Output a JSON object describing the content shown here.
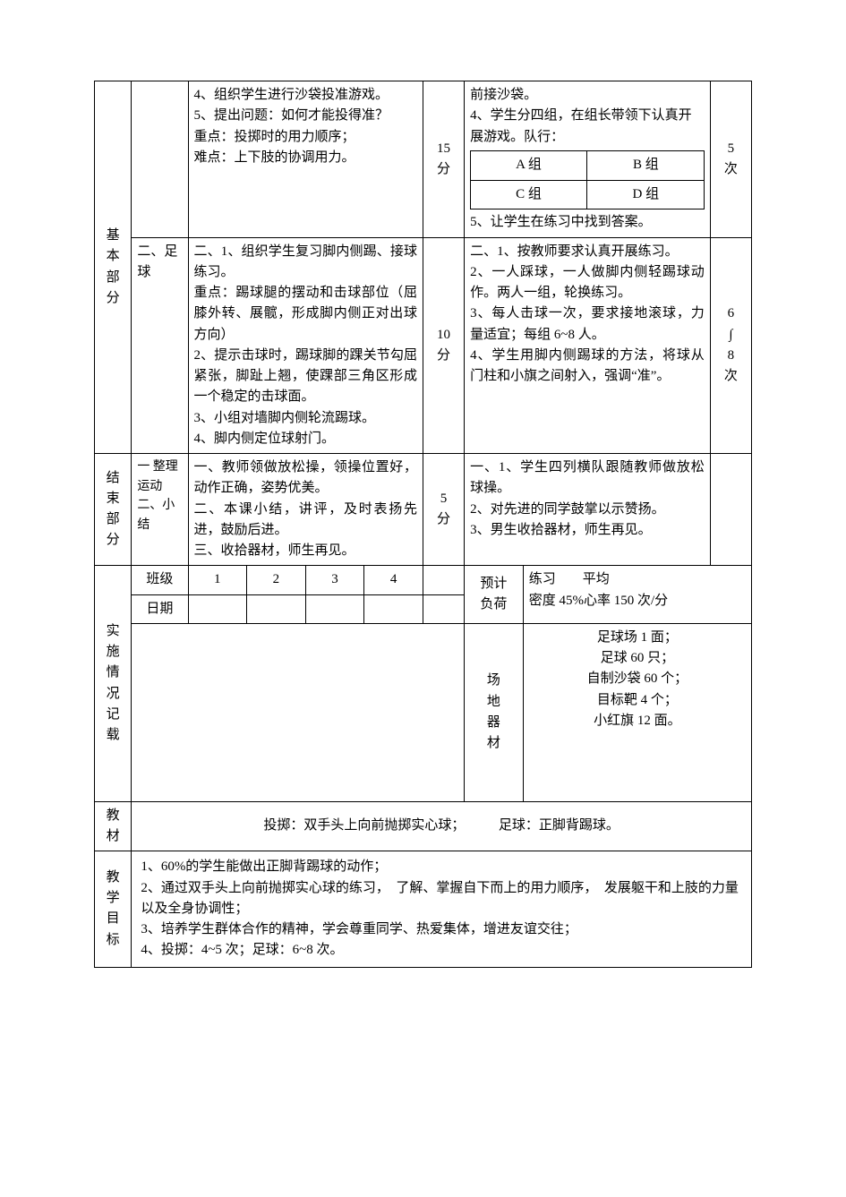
{
  "sections": {
    "basic": {
      "label_chars": [
        "基",
        "本",
        "部",
        "分"
      ]
    },
    "end": {
      "label_chars": [
        "结",
        "束",
        "部",
        "分"
      ]
    },
    "impl": {
      "label_chars": [
        "实",
        "施",
        "情",
        "况",
        "记",
        "载"
      ]
    },
    "jiaocai": {
      "label_chars": [
        "教",
        "材"
      ]
    },
    "jiaoxue": {
      "label_chars": [
        "教",
        "学",
        "目",
        "标"
      ]
    }
  },
  "basic_r1": {
    "c2": "",
    "teacher": "4、组织学生进行沙袋投准游戏。\n5、提出问题：如何才能投得准？\n重点：投掷时的用力顺序；\n难点：上下肢的协调用力。",
    "time": "15分",
    "student_pre": "前接沙袋。\n4、学生分四组，在组长带领下认真开展游戏。队行：",
    "groups": {
      "a": "A 组",
      "b": "B 组",
      "c": "C 组",
      "d": "D 组"
    },
    "student_post": "5、让学生在练习中找到答案。",
    "reps": "5次"
  },
  "basic_r2": {
    "c2": "二、足球",
    "teacher": "二、1、组织学生复习脚内侧踢、接球练习。\n重点：踢球腿的摆动和击球部位（屈膝外转、展髋，形成脚内侧正对出球方向）\n2、提示击球时，踢球脚的踝关节勾屈紧张，脚趾上翘，使踝部三角区形成一个稳定的击球面。\n3、小组对墙脚内侧轮流踢球。\n4、脚内侧定位球射门。",
    "time": "10分",
    "student": "二、1、按教师要求认真开展练习。\n2、一人踩球，一人做脚内侧轻踢球动作。两人一组，轮换练习。\n3、每人击球一次，要求接地滚球，力量适宜；每组 6~8 人。\n4、学生用脚内侧踢球的方法，将球从门柱和小旗之间射入，强调“准”。",
    "reps": "6∫8次"
  },
  "end_row": {
    "c2": "一 整理 运动\n二、小结",
    "teacher": "一、教师领做放松操，领操位置好，动作正确，姿势优美。\n二、本课小结，讲评，及时表扬先进，鼓励后进。\n三、收拾器材，师生再见。",
    "time": "5分",
    "student": "一、1、学生四列横队跟随教师做放松球操。\n2、对先进的同学鼓掌以示赞扬。\n3、男生收拾器材，师生再见。",
    "reps": ""
  },
  "impl": {
    "row1": {
      "label": "班级",
      "c1": "1",
      "c2": "2",
      "c3": "3",
      "c4": "4"
    },
    "row2": {
      "label": "日期"
    },
    "yuji": "预计负荷",
    "metrics": "练习　　平均\n密度 45%心率 150 次/分",
    "changdi": "场地器材",
    "equipment": "足球场 1 面；\n足球 60 只；\n自制沙袋 60 个；\n目标靶 4 个；\n小红旗 12 面。"
  },
  "jiaocai": "投掷：双手头上向前抛掷实心球；　　　足球：正脚背踢球。",
  "jiaoxue": "1、60%的学生能做出正脚背踢球的动作；\n2、通过双手头上向前抛掷实心球的练习，　了解、掌握自下而上的用力顺序，　发展躯干和上肢的力量以及全身协调性；\n3、培养学生群体合作的精神，学会尊重同学、热爱集体，增进友谊交往；\n4、投掷：4~5 次；足球：6~8 次。"
}
